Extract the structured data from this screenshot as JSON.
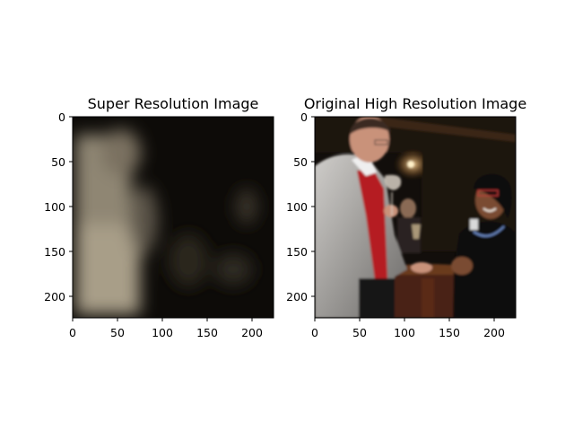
{
  "chart_data": [
    {
      "type": "image",
      "title": "Super Resolution Image",
      "xlim": [
        0,
        224
      ],
      "ylim": [
        224,
        0
      ],
      "xticks": [
        0,
        50,
        100,
        150,
        200
      ],
      "yticks": [
        0,
        50,
        100,
        150,
        200
      ],
      "content": "blurry-reconstruction",
      "colors": {
        "background": "#0d0b08",
        "highlight": "#a89e88",
        "mid": "#5c5448"
      }
    },
    {
      "type": "image",
      "title": "Original High Resolution Image",
      "xlim": [
        0,
        224
      ],
      "ylim": [
        224,
        0
      ],
      "xticks": [
        0,
        50,
        100,
        150,
        200
      ],
      "yticks": [
        0,
        50,
        100,
        150,
        200
      ],
      "content": "photo-two-people-at-event",
      "colors": {
        "background": "#120e0b",
        "jacket": "#a5a3a1",
        "sweater": "#b51f24",
        "skin": "#8a5a3c",
        "table": "#5a2c17"
      }
    }
  ]
}
